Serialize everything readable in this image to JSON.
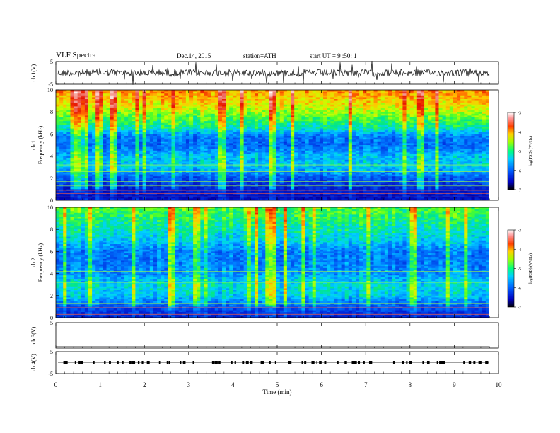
{
  "header": {
    "title": "VLF Spectra",
    "date": "Dec.14, 2015",
    "station": "station=ATH",
    "start": "start UT =  9 :50: 1"
  },
  "colors": {
    "low": "#0000a0",
    "mid_low": "#0080ff",
    "mid": "#00e0a0",
    "mid_high": "#c0ff00",
    "high": "#ff8000",
    "top": "#d00000"
  },
  "chart_data": [
    {
      "type": "line",
      "name": "ch1-waveform",
      "ylabel": "ch.1(V)",
      "ylim": [
        -5,
        5
      ],
      "yticks": [
        "5",
        "-5"
      ],
      "xlim": [
        0,
        10
      ]
    },
    {
      "type": "heatmap",
      "name": "ch1-spectrogram",
      "ylabel_channel": "ch.1",
      "ylabel": "Frequency (kHz)",
      "ylim": [
        0,
        10
      ],
      "yticks": [
        "0",
        "2",
        "4",
        "6",
        "8",
        "10"
      ],
      "xlim": [
        0,
        10
      ],
      "colorbar": {
        "label": "log(PSD) (V²/Hz)",
        "range": [
          -7,
          -3
        ],
        "ticks": [
          "-3",
          "-4",
          "-5",
          "-6",
          "-7"
        ]
      },
      "profile_freq_khz": [
        0,
        1,
        2,
        3,
        4,
        5,
        5.8,
        6.5,
        7.5,
        8.5,
        10
      ],
      "profile_log_psd": [
        -6.8,
        -6.6,
        -6.2,
        -5.6,
        -5.7,
        -6.1,
        -6.0,
        -5.4,
        -5.0,
        -4.6,
        -4.2
      ]
    },
    {
      "type": "heatmap",
      "name": "ch2-spectrogram",
      "ylabel_channel": "ch.2",
      "ylabel": "Frequency (kHz)",
      "ylim": [
        0,
        10
      ],
      "yticks": [
        "0",
        "2",
        "4",
        "6",
        "8",
        "10"
      ],
      "xlim": [
        0,
        10
      ],
      "colorbar": {
        "label": "log(PSD) (V²/Hz)",
        "range": [
          -7,
          -3
        ],
        "ticks": [
          "-3",
          "-4",
          "-5",
          "-6",
          "-7"
        ]
      },
      "profile_freq_khz": [
        0,
        1,
        2,
        3,
        4,
        5,
        6,
        7,
        8,
        9,
        10
      ],
      "profile_log_psd": [
        -6.6,
        -6.2,
        -5.6,
        -5.5,
        -5.9,
        -6.0,
        -6.0,
        -5.6,
        -5.4,
        -5.2,
        -5.0
      ]
    },
    {
      "type": "line",
      "name": "ch3-waveform",
      "ylabel": "ch.3(V)",
      "ylim": [
        -5,
        5
      ],
      "yticks": [
        "5"
      ],
      "xlim": [
        0,
        10
      ]
    },
    {
      "type": "line",
      "name": "ch4-waveform",
      "ylabel": "ch.4(V)",
      "ylim": [
        -5,
        5
      ],
      "yticks": [
        "5",
        "-5"
      ],
      "xlim": [
        0,
        10
      ]
    }
  ],
  "xaxis": {
    "label": "Time (min)",
    "ticks": [
      "0",
      "1",
      "2",
      "3",
      "4",
      "5",
      "6",
      "7",
      "8",
      "9",
      "10"
    ]
  }
}
